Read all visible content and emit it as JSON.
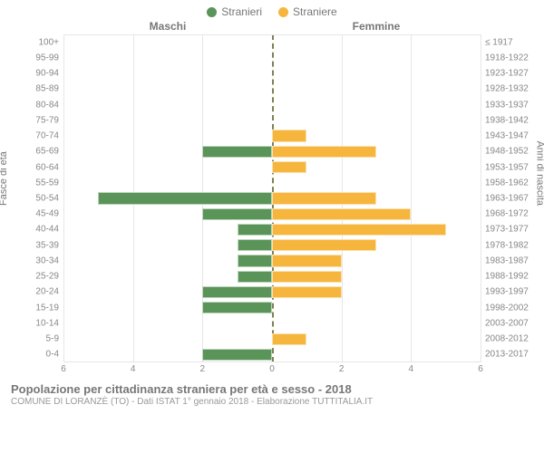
{
  "legend": {
    "male": {
      "label": "Stranieri",
      "color": "#5a9458"
    },
    "female": {
      "label": "Straniere",
      "color": "#f6b53d"
    }
  },
  "column_headers": {
    "left": "Maschi",
    "right": "Femmine"
  },
  "axis_labels": {
    "left": "Fasce di età",
    "right": "Anni di nascita"
  },
  "chart": {
    "type": "population-pyramid",
    "xmax": 6,
    "xticks": [
      6,
      4,
      2,
      0,
      2,
      4,
      6
    ],
    "background_color": "#ffffff",
    "grid_color": "#e6e6e6",
    "center_line_color": "#808052",
    "bar_colors": {
      "male": "#5a9458",
      "female": "#f6b53d"
    },
    "rows": [
      {
        "age": "100+",
        "birth": "≤ 1917",
        "m": 0,
        "f": 0
      },
      {
        "age": "95-99",
        "birth": "1918-1922",
        "m": 0,
        "f": 0
      },
      {
        "age": "90-94",
        "birth": "1923-1927",
        "m": 0,
        "f": 0
      },
      {
        "age": "85-89",
        "birth": "1928-1932",
        "m": 0,
        "f": 0
      },
      {
        "age": "80-84",
        "birth": "1933-1937",
        "m": 0,
        "f": 0
      },
      {
        "age": "75-79",
        "birth": "1938-1942",
        "m": 0,
        "f": 0
      },
      {
        "age": "70-74",
        "birth": "1943-1947",
        "m": 0,
        "f": 1
      },
      {
        "age": "65-69",
        "birth": "1948-1952",
        "m": 2,
        "f": 3
      },
      {
        "age": "60-64",
        "birth": "1953-1957",
        "m": 0,
        "f": 1
      },
      {
        "age": "55-59",
        "birth": "1958-1962",
        "m": 0,
        "f": 0
      },
      {
        "age": "50-54",
        "birth": "1963-1967",
        "m": 5,
        "f": 3
      },
      {
        "age": "45-49",
        "birth": "1968-1972",
        "m": 2,
        "f": 4
      },
      {
        "age": "40-44",
        "birth": "1973-1977",
        "m": 1,
        "f": 5
      },
      {
        "age": "35-39",
        "birth": "1978-1982",
        "m": 1,
        "f": 3
      },
      {
        "age": "30-34",
        "birth": "1983-1987",
        "m": 1,
        "f": 2
      },
      {
        "age": "25-29",
        "birth": "1988-1992",
        "m": 1,
        "f": 2
      },
      {
        "age": "20-24",
        "birth": "1993-1997",
        "m": 2,
        "f": 2
      },
      {
        "age": "15-19",
        "birth": "1998-2002",
        "m": 2,
        "f": 0
      },
      {
        "age": "10-14",
        "birth": "2003-2007",
        "m": 0,
        "f": 0
      },
      {
        "age": "5-9",
        "birth": "2008-2012",
        "m": 0,
        "f": 1
      },
      {
        "age": "0-4",
        "birth": "2013-2017",
        "m": 2,
        "f": 0
      }
    ]
  },
  "footer": {
    "title": "Popolazione per cittadinanza straniera per età e sesso - 2018",
    "subtitle": "COMUNE DI LORANZÈ (TO) - Dati ISTAT 1° gennaio 2018 - Elaborazione TUTTITALIA.IT"
  }
}
